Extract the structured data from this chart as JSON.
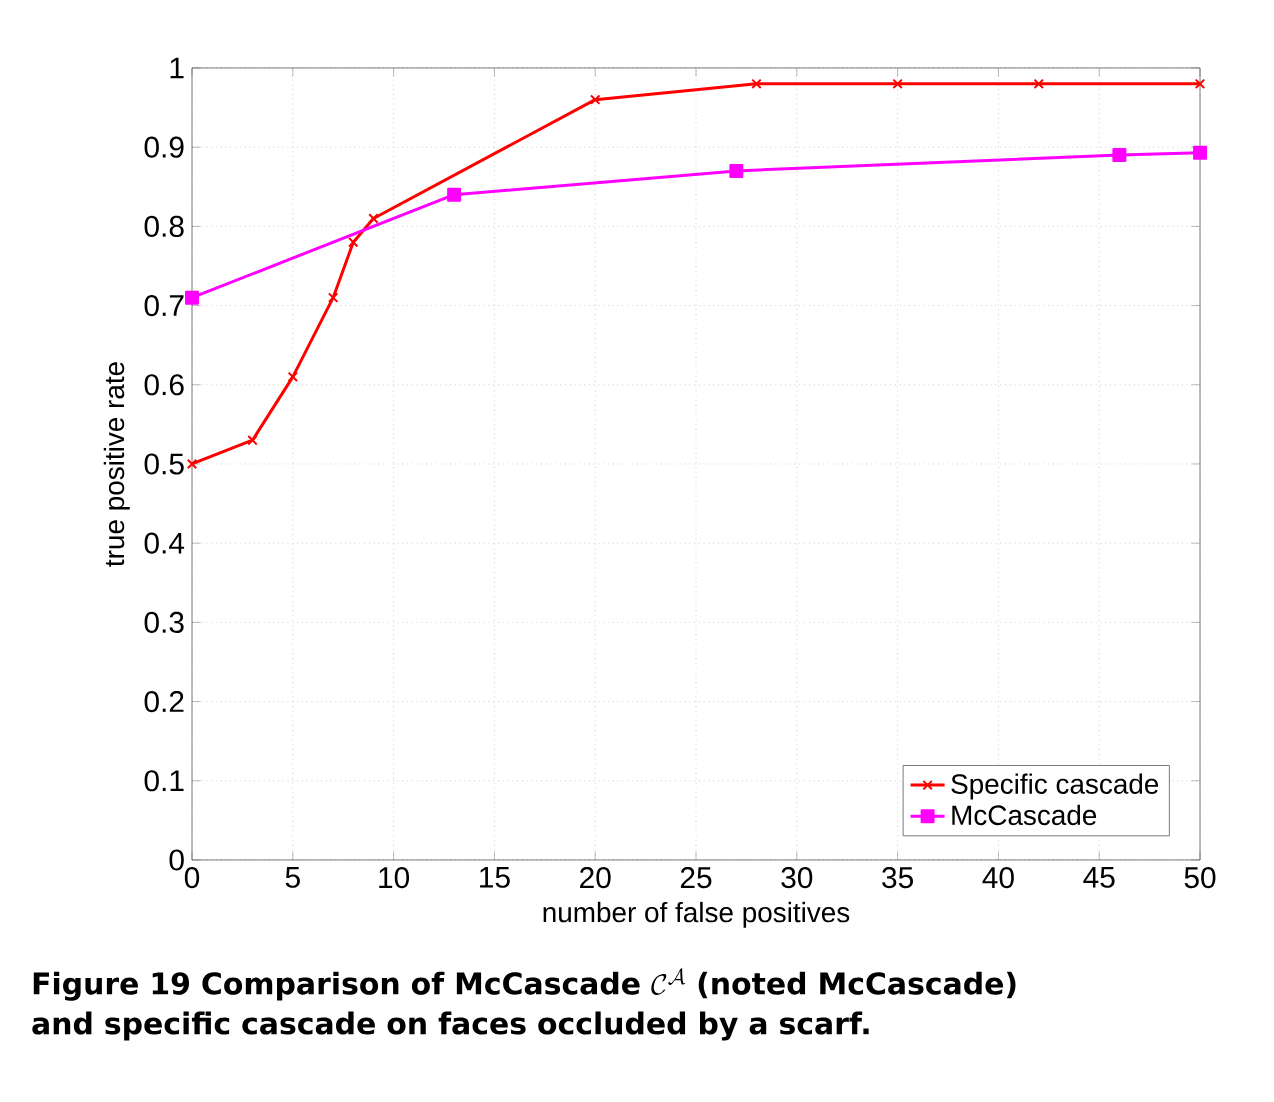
{
  "chart_data": {
    "type": "line",
    "xlabel": "number of false positives",
    "ylabel": "true positive rate",
    "xlim": [
      0,
      50
    ],
    "ylim": [
      0,
      1
    ],
    "xticks": [
      0,
      5,
      10,
      15,
      20,
      25,
      30,
      35,
      40,
      45,
      50
    ],
    "yticks": [
      0,
      0.1,
      0.2,
      0.3,
      0.4,
      0.5,
      0.6,
      0.7,
      0.8,
      0.9,
      1
    ],
    "grid": true,
    "legend": "bottom right",
    "series": [
      {
        "name": "Specific cascade",
        "color": "#ff0000",
        "marker": "cross",
        "x": [
          0,
          3,
          5,
          7,
          8,
          9,
          20,
          28,
          35,
          42,
          50
        ],
        "values": [
          0.5,
          0.53,
          0.61,
          0.71,
          0.78,
          0.81,
          0.96,
          0.98,
          0.98,
          0.98,
          0.98
        ]
      },
      {
        "name": "McCascade",
        "color": "#ff00ff",
        "marker": "square",
        "x": [
          0,
          13,
          27,
          46,
          50
        ],
        "values": [
          0.71,
          0.84,
          0.87,
          0.89,
          0.893
        ]
      }
    ],
    "annotations": [
      "Figure 19",
      "Comparison of McCascade",
      "\\mathcal{C}^{\\mathcal{A}}",
      "(noted McCascade)",
      "and specific cascade on faces occluded by a scarf."
    ]
  }
}
